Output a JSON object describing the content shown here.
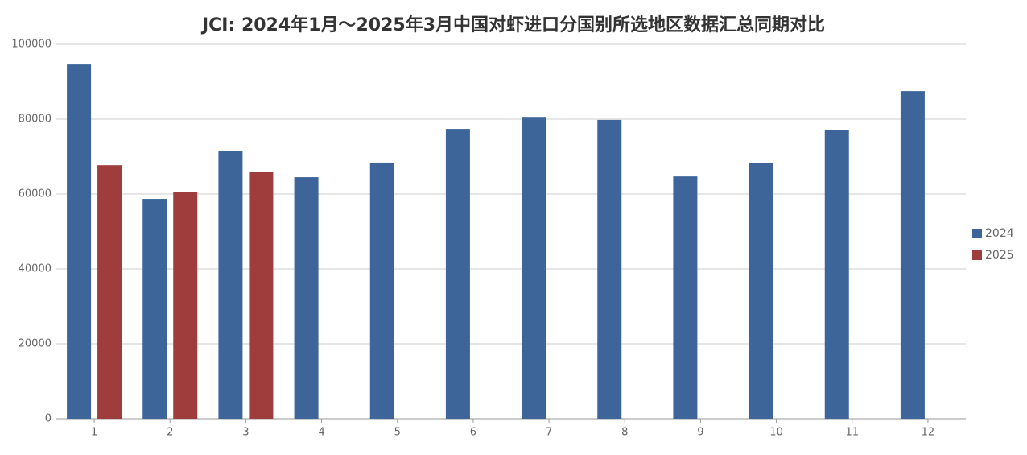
{
  "chart_data": {
    "type": "bar",
    "title": "JCI: 2024年1月～2025年3月中国对虾进口分国别所选地区数据汇总同期对比",
    "categories": [
      "1",
      "2",
      "3",
      "4",
      "5",
      "6",
      "7",
      "8",
      "9",
      "10",
      "11",
      "12"
    ],
    "series": [
      {
        "name": "2024",
        "color": "#3d6599",
        "values": [
          94600,
          58700,
          71600,
          64500,
          68400,
          77400,
          80600,
          79800,
          64700,
          68200,
          77000,
          87500
        ]
      },
      {
        "name": "2025",
        "color": "#9e3d3b",
        "values": [
          67700,
          60600,
          66000,
          null,
          null,
          null,
          null,
          null,
          null,
          null,
          null,
          null
        ]
      }
    ],
    "ylim": [
      0,
      100000
    ],
    "yticks": [
      0,
      20000,
      40000,
      60000,
      80000,
      100000
    ],
    "grid": true,
    "legend": "right"
  }
}
